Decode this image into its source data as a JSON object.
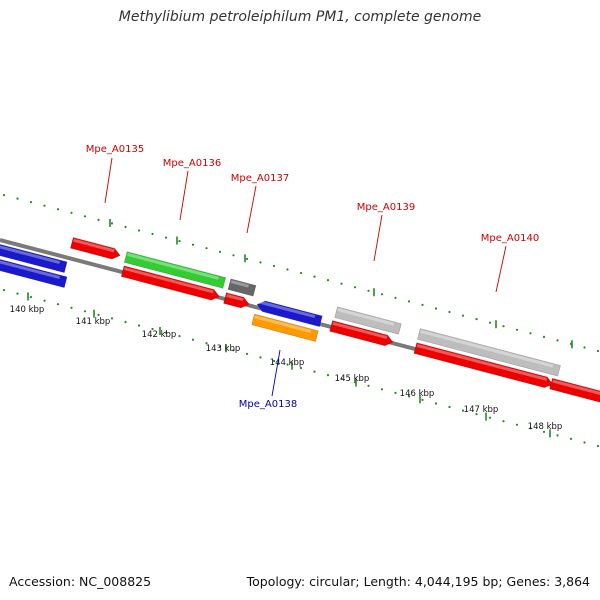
{
  "title": "Methylibium petroleiphilum PM1, complete genome",
  "footer": {
    "accession": "Accession: NC_008825",
    "summary": "Topology: circular; Length: 4,044,195 bp; Genes: 3,864"
  },
  "colors": {
    "cds": "#ee0000",
    "blue": "#1a1acc",
    "green": "#33cc33",
    "gray": "#bdbdbd",
    "dark_gray": "#666666",
    "orange": "#ff9900",
    "tick": "#228822",
    "backbone": "#7a7a7a",
    "label_red": "#cc0000",
    "label_blue": "#0000aa"
  },
  "scale_labels": [
    "140 kbp",
    "141 kbp",
    "142 kbp",
    "143 kbp",
    "144 kbp",
    "145 kbp",
    "146 kbp",
    "147 kbp",
    "148 kbp"
  ],
  "gene_labels": [
    {
      "name": "Mpe_A0135",
      "color": "label_red"
    },
    {
      "name": "Mpe_A0136",
      "color": "label_red"
    },
    {
      "name": "Mpe_A0137",
      "color": "label_red"
    },
    {
      "name": "Mpe_A0139",
      "color": "label_red"
    },
    {
      "name": "Mpe_A0140",
      "color": "label_red"
    },
    {
      "name": "Mpe_A0138",
      "color": "label_blue"
    }
  ]
}
